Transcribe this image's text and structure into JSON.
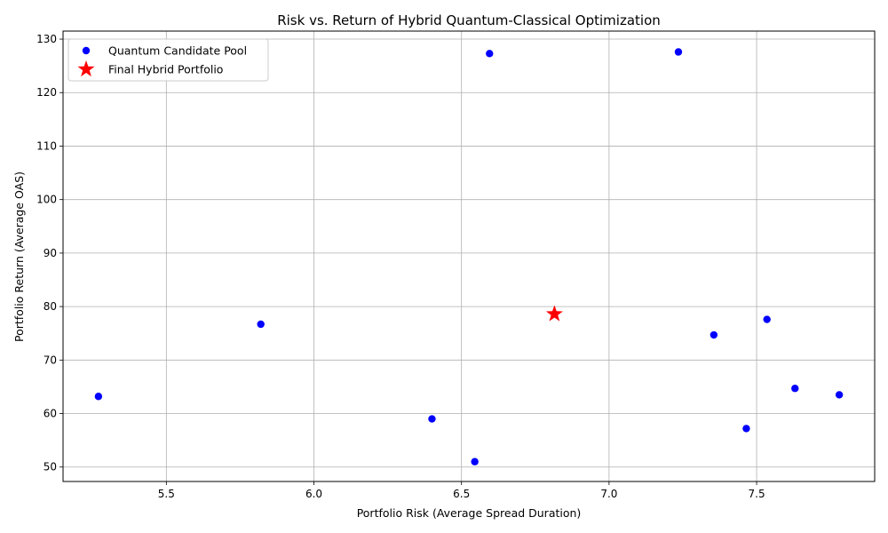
{
  "chart_data": {
    "type": "scatter",
    "title": "Risk vs. Return of Hybrid Quantum-Classical Optimization",
    "xlabel": "Portfolio Risk (Average Spread Duration)",
    "ylabel": "Portfolio Return (Average OAS)",
    "xlim": [
      5.15,
      7.9
    ],
    "ylim": [
      47.3,
      131.5
    ],
    "xticks": [
      5.5,
      6.0,
      6.5,
      7.0,
      7.5
    ],
    "yticks": [
      50,
      60,
      70,
      80,
      90,
      100,
      110,
      120,
      130
    ],
    "grid": true,
    "legend_position": "top-left",
    "series": [
      {
        "name": "Quantum Candidate Pool",
        "marker": "circle",
        "color": "#0000ff",
        "points": [
          {
            "x": 5.27,
            "y": 63.2
          },
          {
            "x": 5.82,
            "y": 76.7
          },
          {
            "x": 6.4,
            "y": 59.0
          },
          {
            "x": 6.545,
            "y": 51.0
          },
          {
            "x": 6.595,
            "y": 127.3
          },
          {
            "x": 7.235,
            "y": 127.6
          },
          {
            "x": 7.355,
            "y": 74.7
          },
          {
            "x": 7.465,
            "y": 57.2
          },
          {
            "x": 7.535,
            "y": 77.6
          },
          {
            "x": 7.63,
            "y": 64.7
          },
          {
            "x": 7.78,
            "y": 63.5
          }
        ]
      },
      {
        "name": "Final Hybrid Portfolio",
        "marker": "star",
        "color": "#ff0000",
        "points": [
          {
            "x": 6.815,
            "y": 78.6
          }
        ]
      }
    ]
  }
}
